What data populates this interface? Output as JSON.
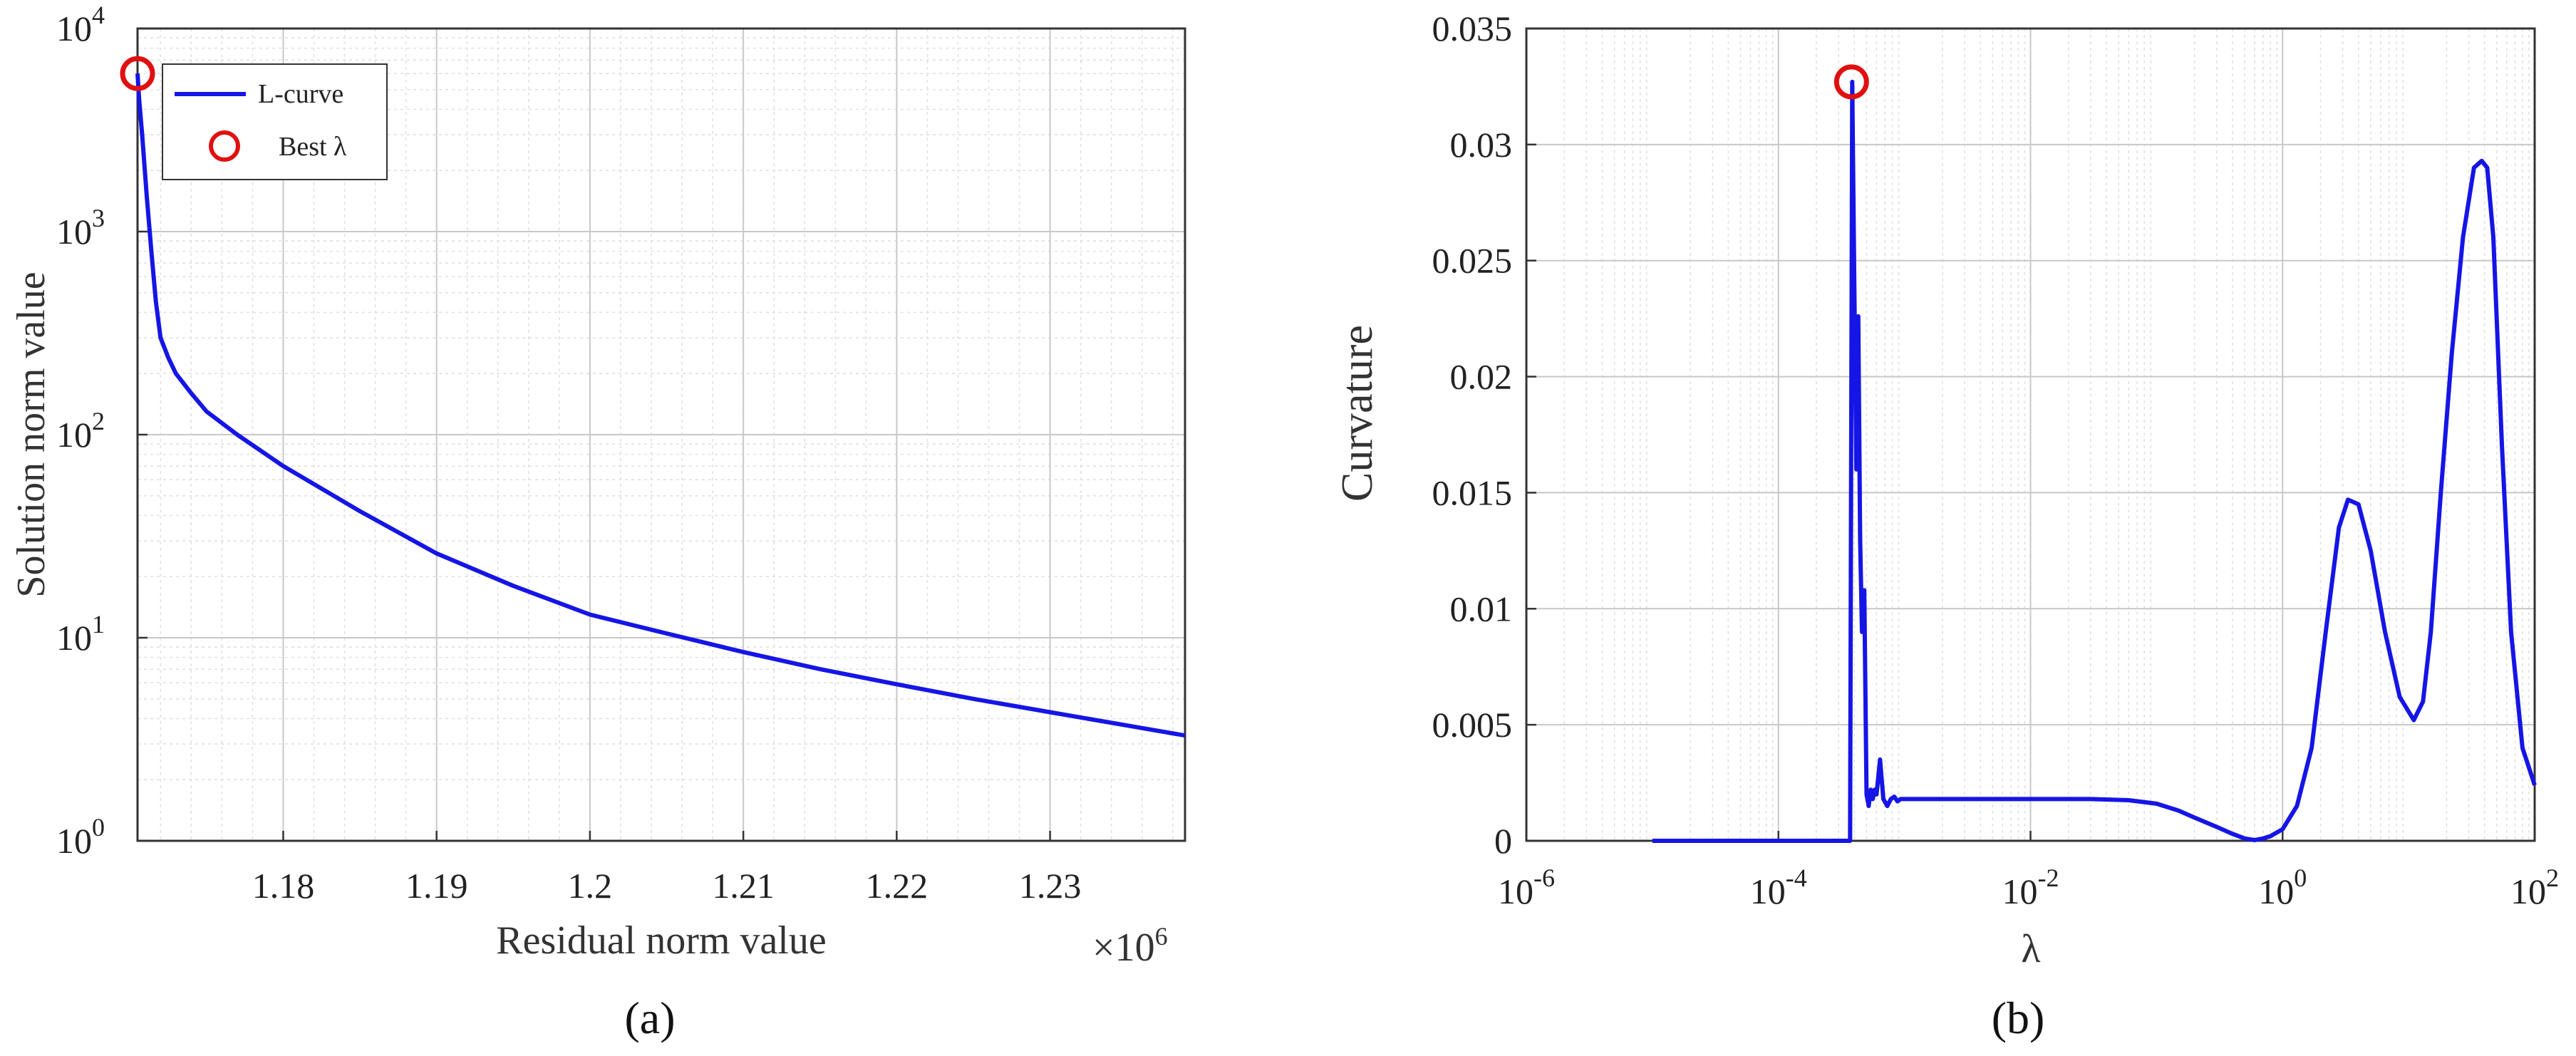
{
  "chart_data": [
    {
      "id": "a",
      "type": "line",
      "caption": "(a)",
      "xlabel": "Residual norm value",
      "ylabel": "Solution norm value",
      "x_multiplier": "×10",
      "x_multiplier_exp": "6",
      "xscale": "linear",
      "yscale": "log",
      "xlim": [
        1.1705,
        1.2388
      ],
      "ylim": [
        1,
        10000
      ],
      "grid": true,
      "legend_placement": "top-left",
      "xticks": [
        {
          "v": 1.18,
          "label": "1.18"
        },
        {
          "v": 1.19,
          "label": "1.19"
        },
        {
          "v": 1.2,
          "label": "1.2"
        },
        {
          "v": 1.21,
          "label": "1.21"
        },
        {
          "v": 1.22,
          "label": "1.22"
        },
        {
          "v": 1.23,
          "label": "1.23"
        }
      ],
      "yticks": [
        {
          "v": 1,
          "base": "10",
          "exp": "0"
        },
        {
          "v": 10,
          "base": "10",
          "exp": "1"
        },
        {
          "v": 100,
          "base": "10",
          "exp": "2"
        },
        {
          "v": 1000,
          "base": "10",
          "exp": "3"
        },
        {
          "v": 10000,
          "base": "10",
          "exp": "4"
        }
      ],
      "series": [
        {
          "name": "L-curve",
          "color": "#1515e6",
          "x": [
            1.1705,
            1.1706,
            1.1708,
            1.1711,
            1.1714,
            1.1717,
            1.172,
            1.1725,
            1.173,
            1.174,
            1.175,
            1.177,
            1.18,
            1.185,
            1.19,
            1.195,
            1.2,
            1.205,
            1.21,
            1.215,
            1.22,
            1.225,
            1.23,
            1.235,
            1.2388
          ],
          "y": [
            6000,
            4500,
            3000,
            1500,
            800,
            450,
            300,
            240,
            200,
            160,
            130,
            100,
            70,
            42,
            26,
            18,
            13,
            10.5,
            8.5,
            7.0,
            5.9,
            5.0,
            4.3,
            3.7,
            3.3
          ]
        }
      ],
      "marker": {
        "name": "Best λ",
        "x": 1.1705,
        "y": 6000,
        "color": "#e01010"
      }
    },
    {
      "id": "b",
      "type": "line",
      "caption": "(b)",
      "xlabel": "λ",
      "ylabel": "Curvature",
      "xscale": "log",
      "yscale": "linear",
      "xlim": [
        1e-06,
        100
      ],
      "ylim": [
        0,
        0.035
      ],
      "grid": true,
      "xticks": [
        {
          "v": 1e-06,
          "base": "10",
          "exp": "-6"
        },
        {
          "v": 0.0001,
          "base": "10",
          "exp": "-4"
        },
        {
          "v": 0.01,
          "base": "10",
          "exp": "-2"
        },
        {
          "v": 1,
          "base": "10",
          "exp": "0"
        },
        {
          "v": 100,
          "base": "10",
          "exp": "2"
        }
      ],
      "yticks": [
        {
          "v": 0,
          "label": "0"
        },
        {
          "v": 0.005,
          "label": "0.005"
        },
        {
          "v": 0.01,
          "label": "0.01"
        },
        {
          "v": 0.015,
          "label": "0.015"
        },
        {
          "v": 0.02,
          "label": "0.02"
        },
        {
          "v": 0.025,
          "label": "0.025"
        },
        {
          "v": 0.03,
          "label": "0.03"
        },
        {
          "v": 0.035,
          "label": "0.035"
        }
      ],
      "series": [
        {
          "name": "Curvature",
          "color": "#1515e6",
          "x": [
            1e-05,
            0.00037,
            0.000385,
            0.0004,
            0.000415,
            0.00043,
            0.000445,
            0.00046,
            0.00048,
            0.0005,
            0.00052,
            0.00054,
            0.00056,
            0.00058,
            0.0006,
            0.00064,
            0.00068,
            0.00073,
            0.00078,
            0.00083,
            0.00088,
            0.00093,
            0.001,
            0.0011,
            0.0012,
            0.0014,
            0.0016,
            0.0018,
            0.002,
            0.005,
            0.01,
            0.03,
            0.06,
            0.1,
            0.15,
            0.2,
            0.3,
            0.4,
            0.5,
            0.6,
            0.7,
            0.8,
            1.0,
            1.3,
            1.7,
            2.2,
            2.8,
            3.3,
            4.0,
            5.0,
            6.5,
            8.5,
            11,
            13,
            15,
            18,
            22,
            27,
            33,
            38,
            42,
            47,
            55,
            65,
            80,
            100
          ],
          "y": [
            0,
            0,
            0.0327,
            0.024,
            0.016,
            0.0226,
            0.013,
            0.009,
            0.0108,
            0.002,
            0.0015,
            0.0022,
            0.0018,
            0.0022,
            0.002,
            0.0035,
            0.0018,
            0.0015,
            0.0018,
            0.0019,
            0.0017,
            0.0018,
            0.0018,
            0.0018,
            0.0018,
            0.0018,
            0.0018,
            0.0018,
            0.0018,
            0.0018,
            0.0018,
            0.0018,
            0.00175,
            0.0016,
            0.0013,
            0.001,
            0.0006,
            0.0003,
            0.0001,
            3e-05,
            0.0001,
            0.0002,
            0.0005,
            0.0015,
            0.004,
            0.009,
            0.0135,
            0.0147,
            0.0145,
            0.0125,
            0.009,
            0.0062,
            0.0052,
            0.006,
            0.009,
            0.015,
            0.021,
            0.026,
            0.029,
            0.0293,
            0.029,
            0.026,
            0.017,
            0.009,
            0.004,
            0.0024
          ]
        }
      ],
      "marker": {
        "name": "Best λ",
        "x": 0.00038,
        "y": 0.0327,
        "color": "#e01010"
      }
    }
  ]
}
